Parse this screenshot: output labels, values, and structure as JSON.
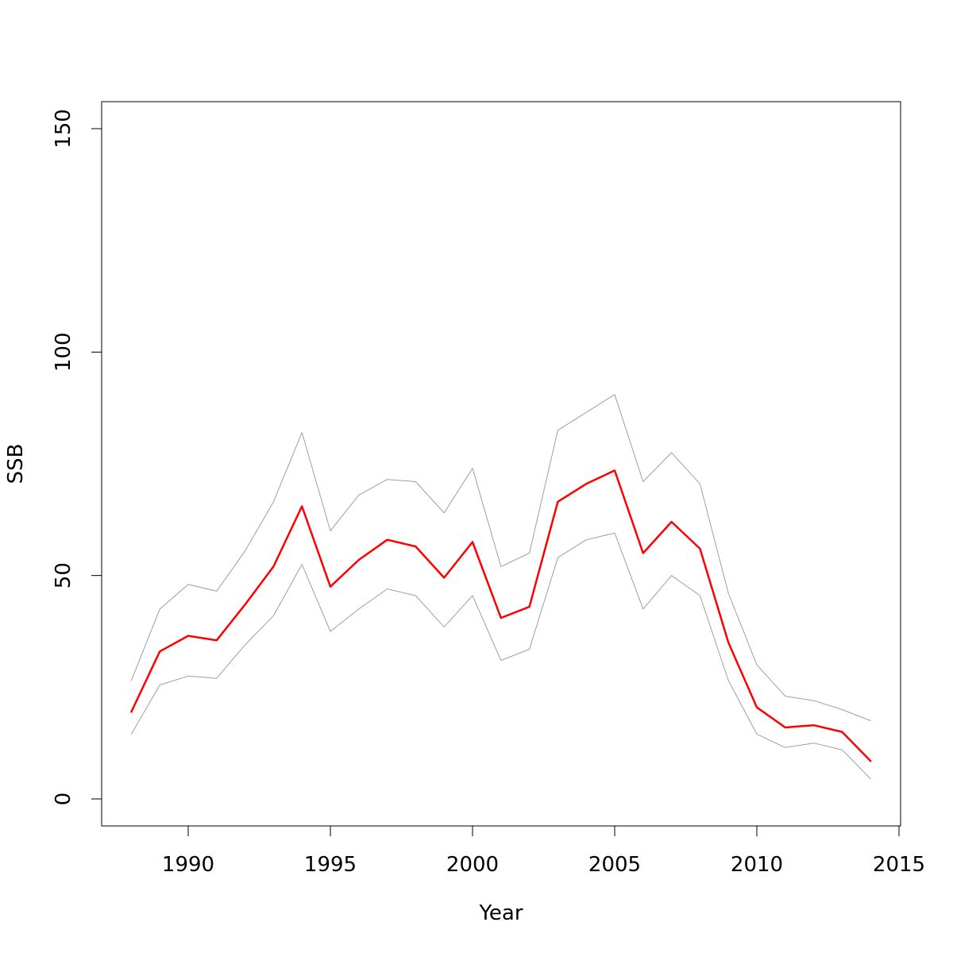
{
  "chart_data": {
    "type": "line",
    "title": "",
    "xlabel": "Year",
    "ylabel": "SSB",
    "xlim": [
      1988,
      2015
    ],
    "ylim": [
      0,
      150
    ],
    "grid": false,
    "legend": "none",
    "x_ticks": [
      1990,
      1995,
      2000,
      2005,
      2010,
      2015
    ],
    "y_ticks": [
      0,
      50,
      100,
      150
    ],
    "x": [
      1988,
      1989,
      1990,
      1991,
      1992,
      1993,
      1994,
      1995,
      1996,
      1997,
      1998,
      1999,
      2000,
      2001,
      2002,
      2003,
      2004,
      2005,
      2006,
      2007,
      2008,
      2009,
      2010,
      2011,
      2012,
      2013,
      2014
    ],
    "series": [
      {
        "role": "upper",
        "color": "#9e9e9e",
        "values": [
          26.5,
          42.5,
          48.0,
          46.5,
          55.5,
          66.5,
          82.0,
          60.0,
          68.0,
          71.5,
          71.0,
          64.0,
          74.0,
          52.0,
          55.0,
          82.5,
          86.5,
          90.5,
          71.0,
          77.5,
          70.5,
          46.0,
          30.0,
          23.0,
          22.0,
          20.0,
          17.5
        ]
      },
      {
        "role": "estimate",
        "color": "#ff0000",
        "values": [
          19.5,
          33.0,
          36.5,
          35.5,
          43.5,
          52.0,
          65.5,
          47.5,
          53.5,
          58.0,
          56.5,
          49.5,
          57.5,
          40.5,
          43.0,
          66.5,
          70.5,
          73.5,
          55.0,
          62.0,
          56.0,
          35.0,
          20.5,
          16.0,
          16.5,
          15.0,
          8.5
        ]
      },
      {
        "role": "lower",
        "color": "#9e9e9e",
        "values": [
          14.5,
          25.5,
          27.5,
          27.0,
          34.5,
          41.0,
          52.5,
          37.5,
          42.5,
          47.0,
          45.5,
          38.5,
          45.5,
          31.0,
          33.5,
          54.0,
          58.0,
          59.5,
          42.5,
          50.0,
          45.5,
          26.5,
          14.5,
          11.5,
          12.5,
          11.0,
          4.5
        ]
      }
    ]
  }
}
